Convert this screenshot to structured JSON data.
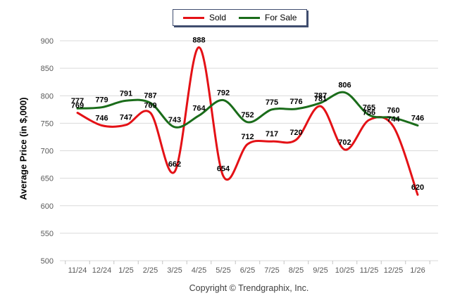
{
  "chart_data": {
    "type": "line",
    "title": "",
    "categories": [
      "11/24",
      "12/24",
      "1/25",
      "2/25",
      "3/25",
      "4/25",
      "5/25",
      "6/25",
      "7/25",
      "8/25",
      "9/25",
      "10/25",
      "11/25",
      "12/25",
      "1/26"
    ],
    "series": [
      {
        "name": "Sold",
        "color": "#e41116",
        "values": [
          769,
          746,
          747,
          769,
          662,
          888,
          654,
          712,
          717,
          720,
          781,
          702,
          756,
          744,
          620
        ]
      },
      {
        "name": "For Sale",
        "color": "#1a6c1a",
        "values": [
          777,
          779,
          791,
          787,
          743,
          764,
          792,
          752,
          775,
          776,
          787,
          806,
          765,
          760,
          746
        ]
      }
    ],
    "xlabel": "",
    "ylabel": "Average Price (in $,000)",
    "ylim": [
      500,
      900
    ],
    "ytick_step": 50,
    "grid": true,
    "legend_position": "top-center",
    "point_labels": true
  },
  "style": {
    "grid_color": "#d9d9d9",
    "tick_text_color": "#595959",
    "point_label_color": "#000000",
    "legend_border_color": "#3f4d6e"
  },
  "footer": {
    "copyright": "Copyright © Trendgraphix, Inc."
  }
}
